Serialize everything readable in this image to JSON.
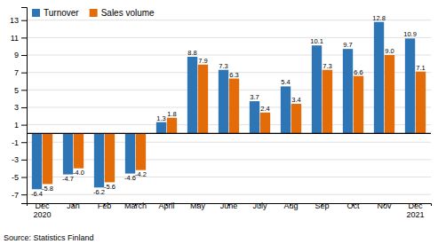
{
  "chart_data": {
    "type": "bar",
    "categories": [
      "Dec\n2020",
      "Jan",
      "Feb",
      "March",
      "April",
      "May",
      "June",
      "July",
      "Aug",
      "Sep",
      "Oct",
      "Nov",
      "Dec\n2021"
    ],
    "series": [
      {
        "name": "Turnover",
        "color": "#2E75B6",
        "values": [
          -6.4,
          -4.7,
          -6.2,
          -4.6,
          1.3,
          8.8,
          7.3,
          3.7,
          5.4,
          10.1,
          9.7,
          12.8,
          10.9
        ]
      },
      {
        "name": "Sales volume",
        "color": "#E36C09",
        "values": [
          -5.8,
          -4.0,
          -5.6,
          -4.2,
          1.8,
          7.9,
          6.3,
          2.4,
          3.4,
          7.3,
          6.6,
          9.0,
          7.1
        ],
        "value_labels": [
          "-5.8",
          "-4.0",
          "-5.6",
          "-4.2",
          "1.8",
          "7.9",
          "6.3",
          "2.4",
          "3.4",
          "7.3",
          "6.6",
          "9.0",
          "7.1"
        ]
      }
    ],
    "ylim": [
      -8,
      14.5
    ],
    "yticks": [
      -7,
      -5,
      -3,
      -1,
      1,
      3,
      5,
      7,
      9,
      11,
      13
    ],
    "grid": true,
    "legend": "top-left",
    "data_labels": true,
    "annotations": [
      "Source: Statistics Finland"
    ]
  }
}
